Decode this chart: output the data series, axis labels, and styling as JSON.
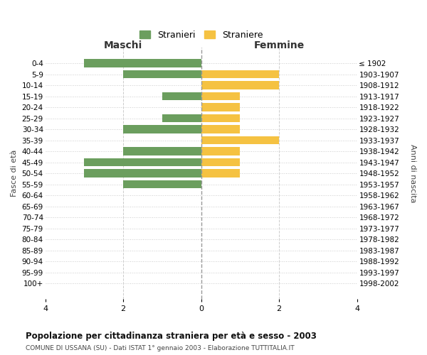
{
  "age_groups": [
    "0-4",
    "5-9",
    "10-14",
    "15-19",
    "20-24",
    "25-29",
    "30-34",
    "35-39",
    "40-44",
    "45-49",
    "50-54",
    "55-59",
    "60-64",
    "65-69",
    "70-74",
    "75-79",
    "80-84",
    "85-89",
    "90-94",
    "95-99",
    "100+"
  ],
  "birth_years": [
    "1998-2002",
    "1993-1997",
    "1988-1992",
    "1983-1987",
    "1978-1982",
    "1973-1977",
    "1968-1972",
    "1963-1967",
    "1958-1962",
    "1953-1957",
    "1948-1952",
    "1943-1947",
    "1938-1942",
    "1933-1937",
    "1928-1932",
    "1923-1927",
    "1918-1922",
    "1913-1917",
    "1908-1912",
    "1903-1907",
    "≤ 1902"
  ],
  "maschi": [
    3,
    2,
    0,
    1,
    0,
    1,
    2,
    0,
    2,
    3,
    3,
    2,
    0,
    0,
    0,
    0,
    0,
    0,
    0,
    0,
    0
  ],
  "femmine": [
    0,
    2,
    2,
    1,
    1,
    1,
    1,
    2,
    1,
    1,
    1,
    0,
    0,
    0,
    0,
    0,
    0,
    0,
    0,
    0,
    0
  ],
  "color_maschi": "#6b9e5e",
  "color_femmine": "#f5c242",
  "title": "Popolazione per cittadinanza straniera per età e sesso - 2003",
  "subtitle": "COMUNE DI USSANA (SU) - Dati ISTAT 1° gennaio 2003 - Elaborazione TUTTITALIA.IT",
  "xlabel_left": "Maschi",
  "xlabel_right": "Femmine",
  "ylabel_left": "Fasce di età",
  "ylabel_right": "Anni di nascita",
  "legend_maschi": "Stranieri",
  "legend_femmine": "Straniere",
  "xlim": 4,
  "background_color": "#ffffff",
  "grid_color": "#cccccc"
}
